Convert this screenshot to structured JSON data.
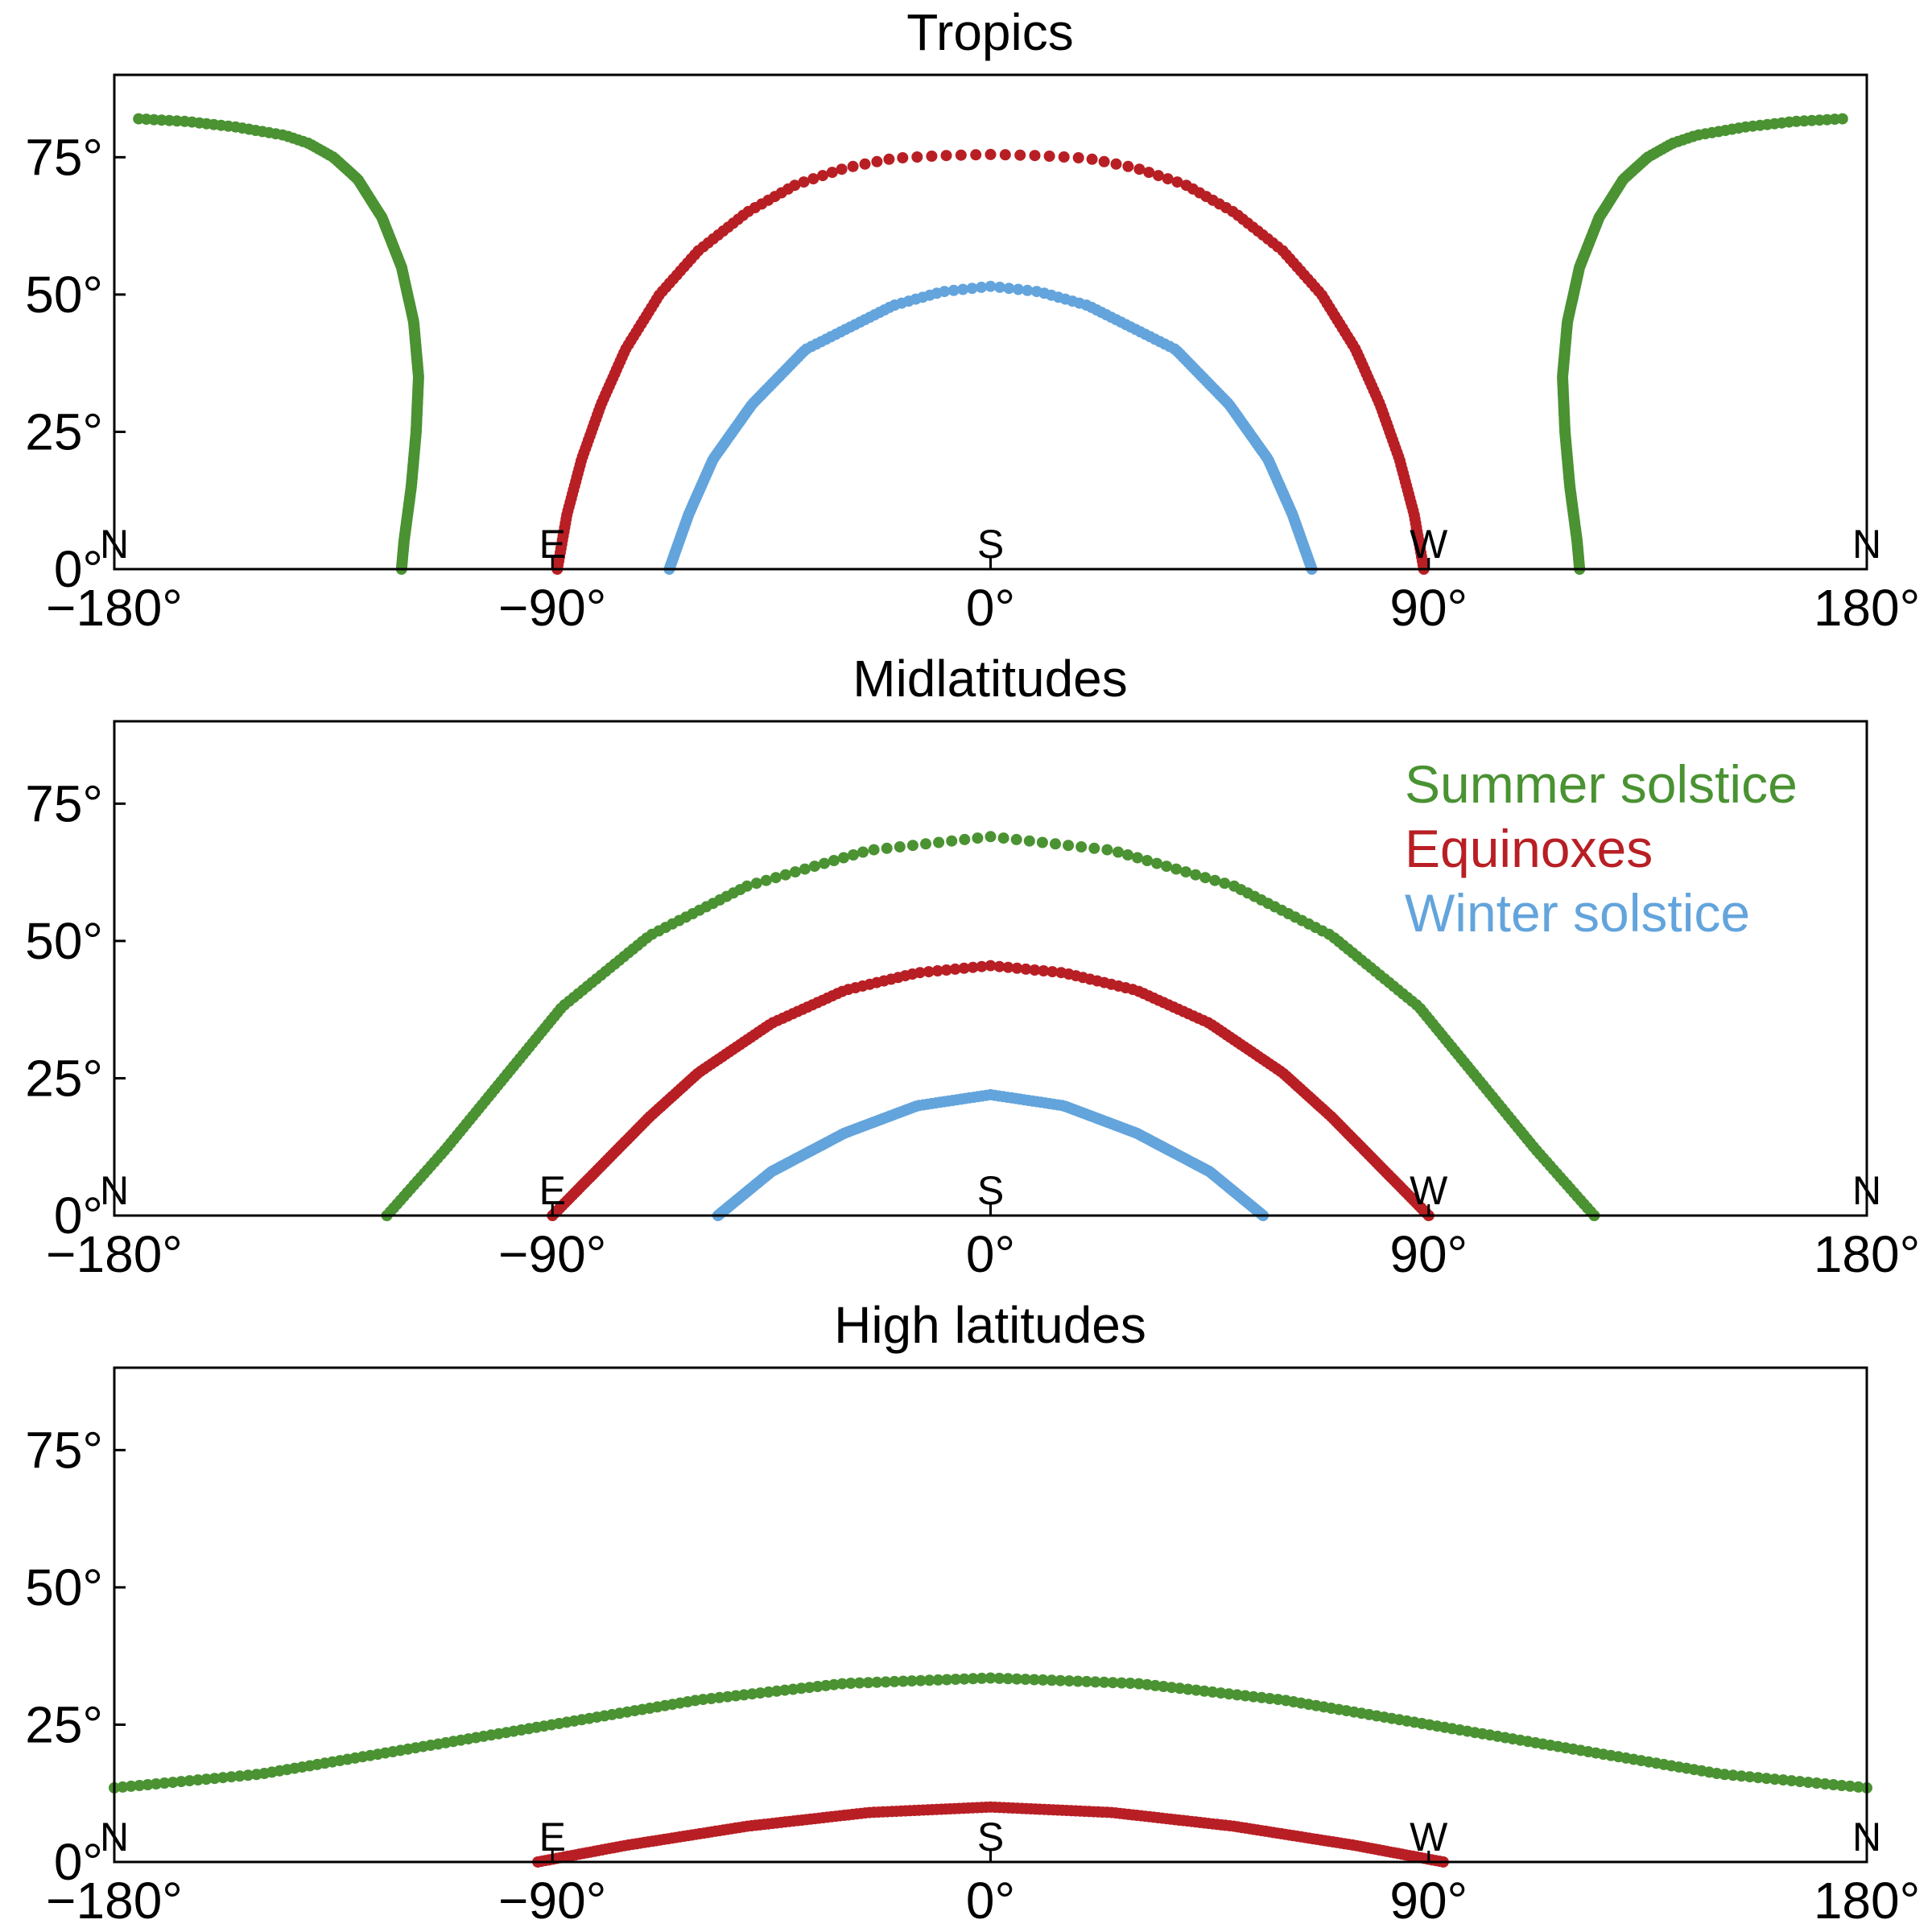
{
  "colors": {
    "summer": "#4a9232",
    "equinox": "#b81f24",
    "winter": "#63a4dc"
  },
  "chart_data": [
    {
      "type": "scatter",
      "title": "Tropics",
      "xlim": [
        -180,
        180
      ],
      "ylim": [
        0,
        90
      ],
      "x_ticks": [
        "−180°",
        "−90°",
        "0°",
        "90°",
        "180°"
      ],
      "y_ticks": [
        "0°",
        "25°",
        "50°",
        "75°"
      ],
      "compass_labels": [
        "N",
        "E",
        "S",
        "W",
        "N"
      ],
      "series": [
        {
          "key": "summer",
          "points": [
            [
              -175,
              82
            ],
            [
              -165,
              81.5
            ],
            [
              -155,
              80.5
            ],
            [
              -145,
              79
            ],
            [
              -140,
              77.5
            ],
            [
              -135,
              75
            ],
            [
              -130,
              71
            ],
            [
              -125,
              64
            ],
            [
              -121,
              55
            ],
            [
              -118.5,
              45
            ],
            [
              -117.5,
              35
            ],
            [
              -118,
              25
            ],
            [
              -119,
              15
            ],
            [
              -120.5,
              5
            ],
            [
              -121,
              0
            ],
            [
              121,
              0
            ],
            [
              120.5,
              5
            ],
            [
              119,
              15
            ],
            [
              118,
              25
            ],
            [
              117.5,
              35
            ],
            [
              118.5,
              45
            ],
            [
              121,
              55
            ],
            [
              125,
              64
            ],
            [
              130,
              71
            ],
            [
              135,
              75
            ],
            [
              140,
              77.5
            ],
            [
              145,
              79
            ],
            [
              155,
              80.5
            ],
            [
              165,
              81.5
            ],
            [
              175,
              82
            ]
          ]
        },
        {
          "key": "equinox",
          "points": [
            [
              -89,
              0
            ],
            [
              -87,
              10
            ],
            [
              -84,
              20
            ],
            [
              -80,
              30
            ],
            [
              -75,
              40
            ],
            [
              -68,
              50
            ],
            [
              -60,
              58
            ],
            [
              -50,
              65
            ],
            [
              -40,
              70
            ],
            [
              -30,
              73
            ],
            [
              -20,
              74.8
            ],
            [
              -10,
              75.3
            ],
            [
              0,
              75.5
            ],
            [
              10,
              75.3
            ],
            [
              20,
              74.8
            ],
            [
              30,
              73
            ],
            [
              40,
              70
            ],
            [
              50,
              65
            ],
            [
              60,
              58
            ],
            [
              68,
              50
            ],
            [
              75,
              40
            ],
            [
              80,
              30
            ],
            [
              84,
              20
            ],
            [
              87,
              10
            ],
            [
              89,
              0
            ]
          ]
        },
        {
          "key": "winter",
          "points": [
            [
              -66,
              0
            ],
            [
              -62,
              10
            ],
            [
              -57,
              20
            ],
            [
              -49,
              30
            ],
            [
              -38,
              40
            ],
            [
              -20,
              48
            ],
            [
              -10,
              50.5
            ],
            [
              0,
              51.5
            ],
            [
              10,
              50.5
            ],
            [
              20,
              48
            ],
            [
              38,
              40
            ],
            [
              49,
              30
            ],
            [
              57,
              20
            ],
            [
              62,
              10
            ],
            [
              66,
              0
            ]
          ]
        }
      ]
    },
    {
      "type": "scatter",
      "title": "Midlatitudes",
      "xlim": [
        -180,
        180
      ],
      "ylim": [
        0,
        90
      ],
      "x_ticks": [
        "−180°",
        "−90°",
        "0°",
        "90°",
        "180°"
      ],
      "y_ticks": [
        "0°",
        "25°",
        "50°",
        "75°"
      ],
      "compass_labels": [
        "N",
        "E",
        "S",
        "W",
        "N"
      ],
      "legend": [
        "Summer solstice",
        "Equinoxes",
        "Winter solstice"
      ],
      "series": [
        {
          "key": "summer",
          "points": [
            [
              -124,
              0
            ],
            [
              -112,
              12
            ],
            [
              -100,
              25
            ],
            [
              -88,
              38
            ],
            [
              -70,
              51
            ],
            [
              -50,
              60
            ],
            [
              -25,
              66.5
            ],
            [
              0,
              69
            ],
            [
              25,
              66.5
            ],
            [
              50,
              60
            ],
            [
              70,
              51
            ],
            [
              88,
              38
            ],
            [
              100,
              25
            ],
            [
              112,
              12
            ],
            [
              124,
              0
            ]
          ]
        },
        {
          "key": "equinox",
          "points": [
            [
              -90,
              0
            ],
            [
              -80,
              9
            ],
            [
              -70,
              18
            ],
            [
              -60,
              26
            ],
            [
              -45,
              35
            ],
            [
              -30,
              41
            ],
            [
              -15,
              44.2
            ],
            [
              0,
              45.5
            ],
            [
              15,
              44.2
            ],
            [
              30,
              41
            ],
            [
              45,
              35
            ],
            [
              60,
              26
            ],
            [
              70,
              18
            ],
            [
              80,
              9
            ],
            [
              90,
              0
            ]
          ]
        },
        {
          "key": "winter",
          "points": [
            [
              -56,
              0
            ],
            [
              -45,
              8
            ],
            [
              -30,
              15
            ],
            [
              -15,
              20
            ],
            [
              0,
              22
            ],
            [
              15,
              20
            ],
            [
              30,
              15
            ],
            [
              45,
              8
            ],
            [
              56,
              0
            ]
          ]
        }
      ]
    },
    {
      "type": "scatter",
      "title": "High latitudes",
      "xlim": [
        -180,
        180
      ],
      "ylim": [
        0,
        90
      ],
      "x_ticks": [
        "−180°",
        "−90°",
        "0°",
        "90°",
        "180°"
      ],
      "y_ticks": [
        "0°",
        "25°",
        "50°",
        "75°"
      ],
      "compass_labels": [
        "N",
        "E",
        "S",
        "W",
        "N"
      ],
      "series": [
        {
          "key": "summer",
          "points": [
            [
              -180,
              13.5
            ],
            [
              -150,
              16
            ],
            [
              -120,
              20.5
            ],
            [
              -90,
              25
            ],
            [
              -60,
              29.5
            ],
            [
              -30,
              32.5
            ],
            [
              0,
              33.5
            ],
            [
              30,
              32.5
            ],
            [
              60,
              29.5
            ],
            [
              90,
              25
            ],
            [
              120,
              20.5
            ],
            [
              150,
              16
            ],
            [
              180,
              13.5
            ]
          ]
        },
        {
          "key": "equinox",
          "points": [
            [
              -93,
              0
            ],
            [
              -75,
              3
            ],
            [
              -50,
              6.5
            ],
            [
              -25,
              9
            ],
            [
              0,
              10
            ],
            [
              25,
              9
            ],
            [
              50,
              6.5
            ],
            [
              75,
              3
            ],
            [
              93,
              0
            ]
          ]
        }
      ]
    }
  ]
}
